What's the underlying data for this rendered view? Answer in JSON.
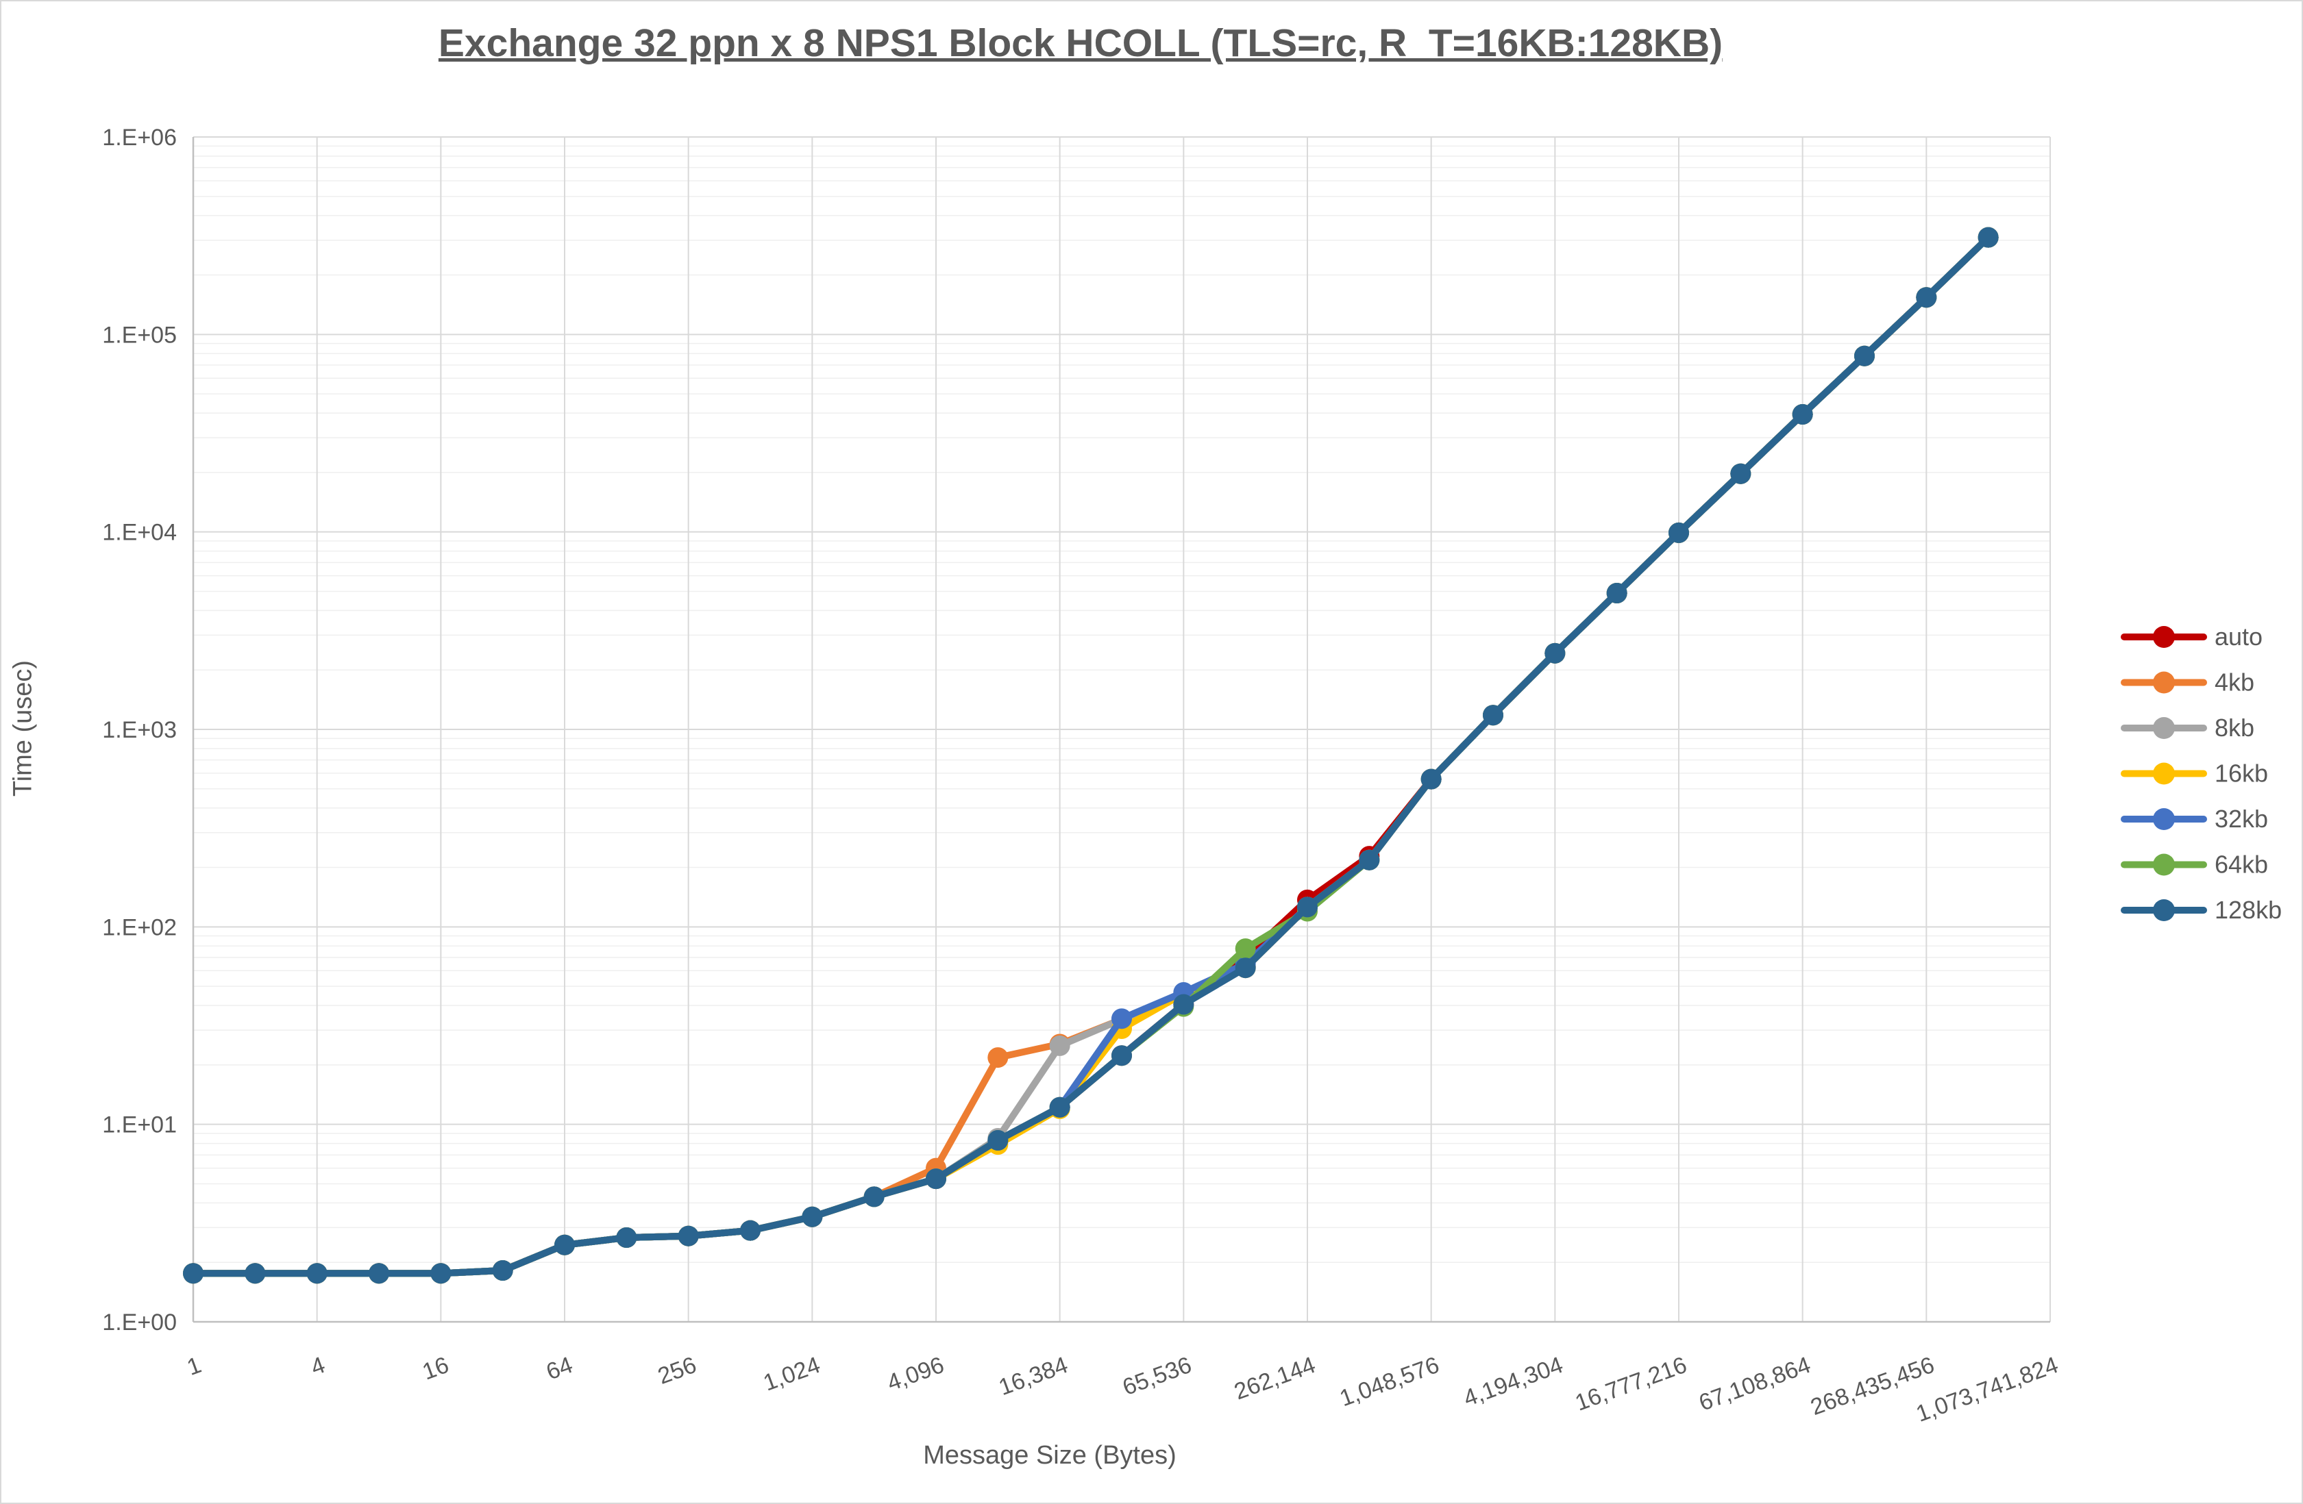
{
  "chart_data": {
    "type": "line",
    "title": "Exchange 32 ppn x 8 NPS1 Block HCOLL (TLS=rc, R_T=16KB:128KB)",
    "xlabel": "Message Size (Bytes)",
    "ylabel": "Time (usec)",
    "x_scale": "log2 categories (powers of 2)",
    "y_scale": "log10",
    "ylim": [
      1,
      1000000
    ],
    "y_tick_labels": [
      "1.E+00",
      "1.E+01",
      "1.E+02",
      "1.E+03",
      "1.E+04",
      "1.E+05",
      "1.E+06"
    ],
    "x_tick_labels": [
      "1",
      "4",
      "16",
      "64",
      "256",
      "1,024",
      "4,096",
      "16,384",
      "65,536",
      "262,144",
      "1,048,576",
      "4,194,304",
      "16,777,216",
      "67,108,864",
      "268,435,456",
      "1,073,741,824"
    ],
    "categories": [
      1,
      2,
      4,
      8,
      16,
      32,
      64,
      128,
      256,
      512,
      1024,
      2048,
      4096,
      8192,
      16384,
      32768,
      65536,
      131072,
      262144,
      524288,
      1048576,
      2097152,
      4194304,
      8388608,
      16777216,
      33554432,
      67108864,
      134217728,
      268435456,
      536870912
    ],
    "axis_max_category": 1073741824,
    "grid": "major and minor log gridlines on",
    "legend_position": "right",
    "text_color": "#595959",
    "grid_major_color": "#d9d9d9",
    "grid_minor_color": "#efefef",
    "axis_line_color": "#bfbfbf",
    "series": [
      {
        "name": "auto",
        "color": "#C00000",
        "values": [
          1.76,
          1.76,
          1.76,
          1.76,
          1.76,
          1.82,
          2.45,
          2.67,
          2.72,
          2.9,
          3.4,
          4.3,
          5.3,
          8.3,
          12.2,
          22.3,
          40.5,
          70,
          137,
          228,
          560,
          1180,
          2430,
          4900,
          9900,
          19700,
          39400,
          77800,
          154000,
          310000
        ]
      },
      {
        "name": "4kb",
        "color": "#ED7D31",
        "values": [
          1.76,
          1.76,
          1.76,
          1.76,
          1.76,
          1.82,
          2.45,
          2.67,
          2.72,
          2.9,
          3.4,
          4.3,
          6.0,
          21.8,
          25.5,
          34.0,
          46.0,
          63,
          126,
          218,
          560,
          1180,
          2430,
          4900,
          9900,
          19700,
          39400,
          77800,
          154000,
          310000
        ]
      },
      {
        "name": "8kb",
        "color": "#A5A5A5",
        "values": [
          1.76,
          1.76,
          1.76,
          1.76,
          1.76,
          1.82,
          2.45,
          2.67,
          2.72,
          2.9,
          3.4,
          4.3,
          5.3,
          8.5,
          25.0,
          34.0,
          46.0,
          63,
          126,
          218,
          560,
          1180,
          2430,
          4900,
          9900,
          19700,
          39400,
          77800,
          154000,
          310000
        ]
      },
      {
        "name": "16kb",
        "color": "#FFC000",
        "values": [
          1.76,
          1.76,
          1.76,
          1.76,
          1.76,
          1.82,
          2.45,
          2.67,
          2.72,
          2.9,
          3.4,
          4.3,
          5.3,
          7.9,
          12.0,
          30.5,
          46.0,
          62,
          126,
          218,
          560,
          1180,
          2430,
          4900,
          9900,
          19700,
          39400,
          77800,
          154000,
          310000
        ]
      },
      {
        "name": "32kb",
        "color": "#4472C4",
        "values": [
          1.76,
          1.76,
          1.76,
          1.76,
          1.76,
          1.82,
          2.45,
          2.67,
          2.72,
          2.9,
          3.4,
          4.3,
          5.3,
          8.3,
          12.2,
          34.3,
          46.6,
          65,
          126,
          218,
          560,
          1180,
          2430,
          4900,
          9900,
          19700,
          39400,
          77800,
          154000,
          310000
        ]
      },
      {
        "name": "64kb",
        "color": "#70AD47",
        "values": [
          1.76,
          1.76,
          1.76,
          1.76,
          1.76,
          1.82,
          2.45,
          2.67,
          2.72,
          2.9,
          3.4,
          4.3,
          5.3,
          8.3,
          12.2,
          22.3,
          39.5,
          77.6,
          120,
          218,
          560,
          1180,
          2430,
          4900,
          9900,
          19700,
          39400,
          77800,
          154000,
          310000
        ]
      },
      {
        "name": "128kb",
        "color": "#2A648F",
        "values": [
          1.76,
          1.76,
          1.76,
          1.76,
          1.76,
          1.82,
          2.45,
          2.67,
          2.72,
          2.9,
          3.4,
          4.3,
          5.3,
          8.3,
          12.2,
          22.3,
          40.5,
          62,
          126,
          218,
          560,
          1180,
          2430,
          4900,
          9900,
          19700,
          39400,
          77800,
          154000,
          310000
        ]
      }
    ]
  }
}
